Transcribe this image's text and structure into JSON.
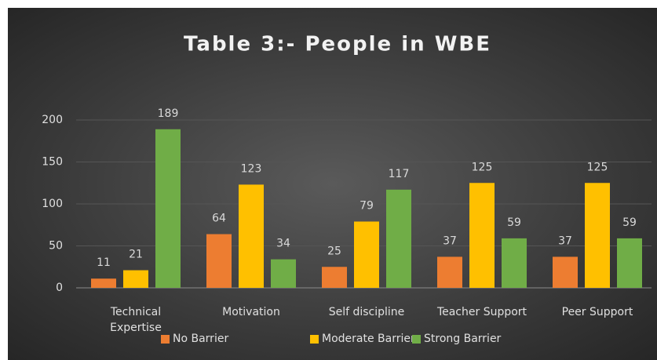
{
  "chart_data": {
    "type": "bar",
    "title": "Table 3:- People in WBE",
    "categories": [
      "Technical Expertise",
      "Motivation",
      "Self discipline",
      "Teacher Support",
      "Peer Support"
    ],
    "series": [
      {
        "name": "No Barrier",
        "color": "#ed7d31",
        "values": [
          11,
          64,
          25,
          37,
          37
        ]
      },
      {
        "name": "Moderate Barrier",
        "color": "#ffc000",
        "values": [
          21,
          123,
          79,
          125,
          125
        ]
      },
      {
        "name": "Strong Barrier",
        "color": "#70ad47",
        "values": [
          189,
          34,
          117,
          59,
          59
        ]
      }
    ],
    "ylim": [
      0,
      200
    ],
    "yticks": [
      0,
      50,
      100,
      150,
      200
    ],
    "grid": true,
    "legend": "bottom"
  }
}
